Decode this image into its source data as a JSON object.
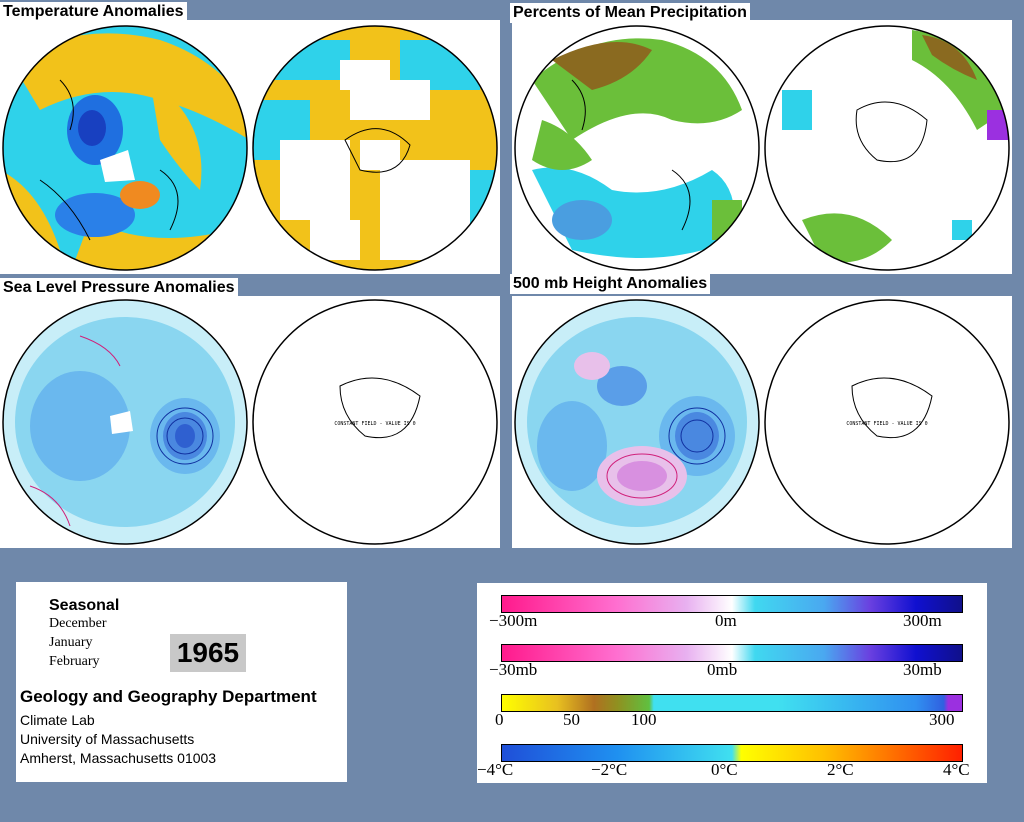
{
  "panels": {
    "temperature": {
      "title": "Temperature Anomalies"
    },
    "precipitation": {
      "title": "Percents of Mean Precipitation"
    },
    "sea_level": {
      "title": "Sea Level Pressure Anomalies",
      "constant_field": "CONSTANT FIELD - VALUE IS 0"
    },
    "height500": {
      "title": "500 mb Height Anomalies",
      "constant_field": "CONSTANT FIELD - VALUE IS 0"
    }
  },
  "info": {
    "season": "Seasonal",
    "months": [
      "December",
      "January",
      "February"
    ],
    "year": "1965",
    "department": "Geology and Geography Department",
    "address": [
      "Climate Lab",
      "University of Massachusetts",
      "Amherst, Massachusetts 01003"
    ]
  },
  "legend": {
    "height": {
      "labels": [
        "−300m",
        "0m",
        "300m"
      ]
    },
    "pressure": {
      "labels": [
        "−30mb",
        "0mb",
        "30mb"
      ]
    },
    "precip": {
      "labels": [
        "0",
        "50",
        "100",
        "300"
      ]
    },
    "temp": {
      "labels": [
        "−4°C",
        "−2°C",
        "0°C",
        "2°C",
        "4°C"
      ]
    }
  },
  "colors": {
    "background": "#6f88aa",
    "warm": "#f5c518",
    "cool": "#22d0e8",
    "deep_blue": "#1f5fd8",
    "magenta": "#ff1a8c"
  }
}
